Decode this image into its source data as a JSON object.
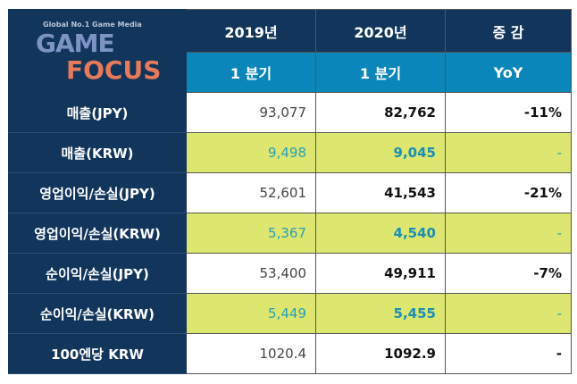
{
  "header": {
    "col1_year": "2019년",
    "col2_year": "2020년",
    "col3": "증 감",
    "col1_q": "1 분기",
    "col2_q": "1 분기",
    "col3_q": "YoY"
  },
  "rows": [
    {
      "label": "매출(JPY)",
      "v2019": "93,077",
      "v2020": "82,762",
      "yoy": "-11%",
      "highlight": false
    },
    {
      "label": "매출(KRW)",
      "v2019": "9,498",
      "v2020": "9,045",
      "yoy": "-",
      "highlight": true
    },
    {
      "label": "영업이익/손실(JPY)",
      "v2019": "52,601",
      "v2020": "41,543",
      "yoy": "-21%",
      "highlight": false
    },
    {
      "label": "영업이익/손실(KRW)",
      "v2019": "5,367",
      "v2020": "4,540",
      "yoy": "-",
      "highlight": true
    },
    {
      "label": "순이익/손실(JPY)",
      "v2019": "53,400",
      "v2020": "49,911",
      "yoy": "-7%",
      "highlight": false
    },
    {
      "label": "순이익/손실(KRW)",
      "v2019": "5,449",
      "v2020": "5,455",
      "yoy": "-",
      "highlight": true
    },
    {
      "label": "100엔당 KRW",
      "v2019": "1020.4",
      "v2020": "1092.9",
      "yoy": "-",
      "highlight": false
    }
  ],
  "watermark": {
    "tagline": "Global No.1 Game Media",
    "line1": "GAME",
    "line2": "FOCUS"
  },
  "colors": {
    "navy": "#12355b",
    "blue": "#0a86ba",
    "highlight": "#dde66f",
    "teal_text": "#1a8fb5"
  }
}
